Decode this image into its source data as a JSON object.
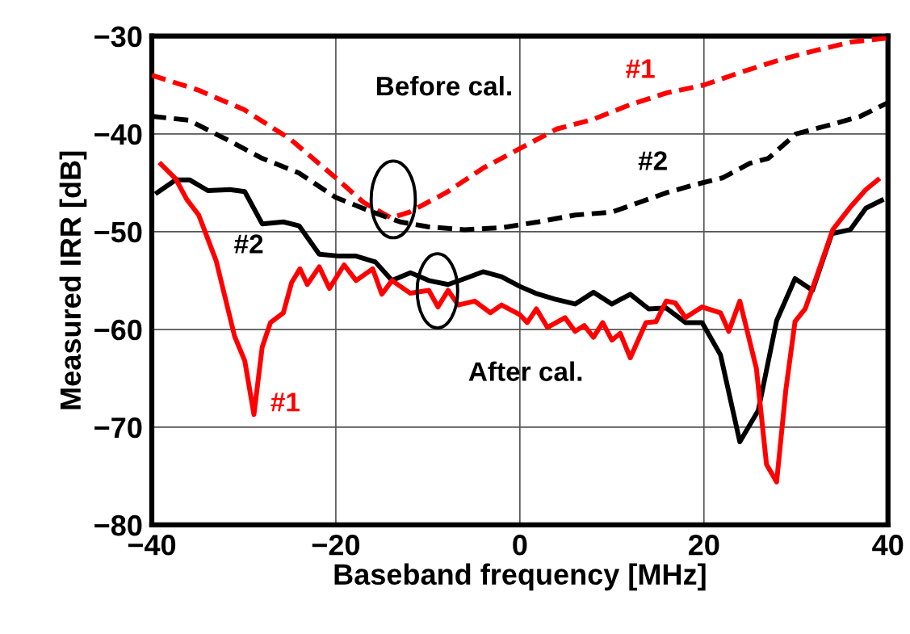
{
  "chart_data": {
    "type": "line",
    "xlabel": "Baseband frequency [MHz]",
    "ylabel": "Measured IRR [dB]",
    "xlim": [
      -40,
      40
    ],
    "xticks": [
      -40,
      -20,
      0,
      20,
      40
    ],
    "ylim": [
      -80,
      -30
    ],
    "yticks": [
      -80,
      -70,
      -60,
      -50,
      -40,
      -30
    ],
    "grid": true,
    "legend": false,
    "marker": "none",
    "series": [
      {
        "name": "#1",
        "color": "#ff0000",
        "line_style": "dashed",
        "x": [
          -40,
          -35,
          -30,
          -25,
          -20,
          -17,
          -14,
          -12,
          -8,
          -4,
          0,
          4,
          8,
          12,
          16,
          20,
          24,
          28,
          32,
          36,
          40
        ],
        "values": [
          -34,
          -35.5,
          -37.5,
          -40.5,
          -44.5,
          -47,
          -48.6,
          -48,
          -46,
          -43.5,
          -41.5,
          -39.5,
          -38.5,
          -37,
          -35.8,
          -35,
          -33.7,
          -32.5,
          -31.5,
          -30.6,
          -30.2
        ]
      },
      {
        "name": "#2",
        "color": "#000000",
        "line_style": "dashed",
        "x": [
          -40,
          -36,
          -32,
          -28,
          -24,
          -20,
          -16,
          -13,
          -10,
          -6,
          -2,
          2,
          6,
          10,
          13,
          16,
          19,
          22,
          25,
          27,
          30,
          34,
          37,
          40
        ],
        "values": [
          -38.2,
          -38.6,
          -40.5,
          -42.5,
          -44,
          -46.5,
          -48,
          -49,
          -49.5,
          -49.8,
          -49.6,
          -49,
          -48.3,
          -48,
          -47,
          -46,
          -45.2,
          -44.5,
          -43,
          -42.5,
          -40,
          -39,
          -38.2,
          -36.8
        ]
      },
      {
        "name": "#2",
        "color": "#000000",
        "line_style": "solid",
        "x": [
          -39.4,
          -37.4,
          -35.9,
          -33.9,
          -31.5,
          -29.9,
          -28,
          -25.7,
          -24,
          -21.8,
          -19.6,
          -17.8,
          -15.7,
          -13.9,
          -11.9,
          -9.9,
          -7.8,
          -6,
          -4,
          -2,
          0,
          1.7,
          3.8,
          6,
          8,
          10,
          12,
          14,
          15.9,
          18,
          19.8,
          21.8,
          23.9,
          25.9,
          27.9,
          29.9,
          31.8,
          33.9,
          35.9,
          37.6,
          39.3
        ],
        "values": [
          -46,
          -44.7,
          -44.7,
          -45.8,
          -45.7,
          -45.9,
          -49.2,
          -49,
          -49.4,
          -52.3,
          -52.5,
          -52.5,
          -53.1,
          -55,
          -54.2,
          -55,
          -55.4,
          -54.8,
          -54.1,
          -54.6,
          -55.6,
          -56.3,
          -56.9,
          -57.4,
          -56.2,
          -57.4,
          -56.4,
          -57.9,
          -57.8,
          -59.3,
          -59.3,
          -62.6,
          -71.5,
          -68.3,
          -59.1,
          -54.8,
          -56,
          -50.2,
          -49.8,
          -47.6,
          -46.8
        ]
      },
      {
        "name": "#1",
        "color": "#ff0000",
        "line_style": "solid",
        "x": [
          -39,
          -37.4,
          -36.2,
          -34.9,
          -33,
          -31,
          -29.9,
          -28.9,
          -28,
          -27.1,
          -25.7,
          -24.8,
          -23.9,
          -23.1,
          -21.8,
          -20.7,
          -19.1,
          -17.8,
          -16,
          -15,
          -13.9,
          -11.9,
          -9.9,
          -8.9,
          -7.8,
          -6.7,
          -4.9,
          -3.2,
          -2,
          0,
          0.8,
          1.8,
          3,
          4.9,
          6,
          7,
          8,
          9,
          10,
          10.9,
          12,
          13.7,
          14.8,
          15.9,
          16.9,
          18,
          19.8,
          21.8,
          22.7,
          23.9,
          25.7,
          26.8,
          27.9,
          28.9,
          29.9,
          31,
          32.1,
          34,
          35.9,
          37.6,
          38.9
        ],
        "values": [
          -43.1,
          -44.6,
          -46.7,
          -48.3,
          -53,
          -60.7,
          -63.2,
          -68.7,
          -61.8,
          -59.3,
          -58.3,
          -55.2,
          -53.8,
          -55.4,
          -53.6,
          -55.8,
          -53.4,
          -55,
          -53.8,
          -56.4,
          -55,
          -56.3,
          -56,
          -57.7,
          -56,
          -57.5,
          -57.1,
          -58.3,
          -57.5,
          -58.5,
          -59.3,
          -57.9,
          -59.8,
          -58.8,
          -60.2,
          -59.6,
          -60.8,
          -59.3,
          -61.1,
          -60.4,
          -62.9,
          -59.3,
          -59.2,
          -57.1,
          -57.3,
          -58.8,
          -57.7,
          -58.3,
          -60.2,
          -57.1,
          -64,
          -73.8,
          -75.6,
          -66.2,
          -59.2,
          -57.9,
          -55,
          -49.8,
          -47.5,
          -45.7,
          -44.7
        ]
      }
    ],
    "annotations": [
      "Before cal.",
      "After cal."
    ]
  }
}
